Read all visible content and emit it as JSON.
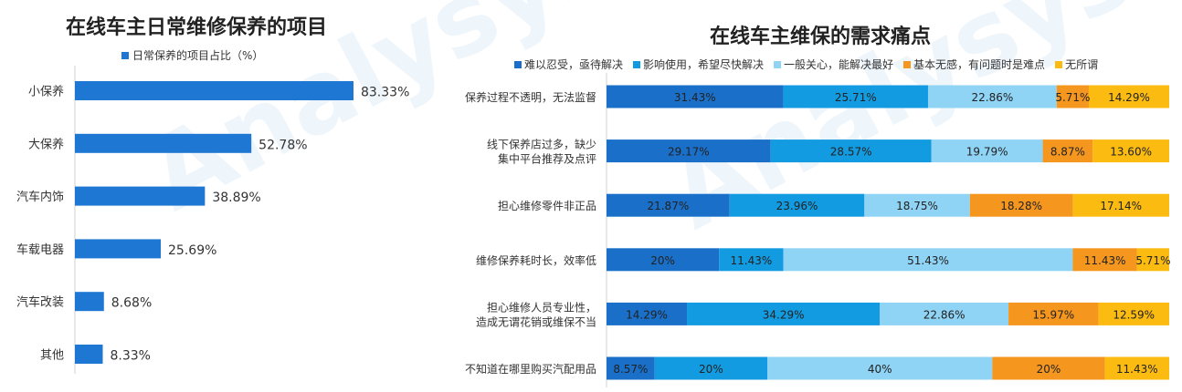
{
  "watermark": "Analysys 易观分析",
  "chart_data": [
    {
      "type": "bar",
      "orientation": "horizontal",
      "title": "在线车主日常维修保养的项目",
      "categories": [
        "小保养",
        "大保养",
        "汽车内饰",
        "车载电器",
        "汽车改装",
        "其他"
      ],
      "series": [
        {
          "name": "日常保养的项目占比（%）",
          "values": [
            83.33,
            52.78,
            38.89,
            25.69,
            8.68,
            8.33
          ],
          "color": "#1f77d4"
        }
      ],
      "value_labels": [
        "83.33%",
        "52.78%",
        "38.89%",
        "25.69%",
        "8.68%",
        "8.33%"
      ],
      "xlim": [
        0,
        100
      ],
      "grid": false,
      "legend_position": "top"
    },
    {
      "type": "bar",
      "orientation": "horizontal",
      "stacked": true,
      "title": "在线车主维保的需求痛点",
      "categories": [
        "保养过程不透明，无法监督",
        "线下保养店过多，缺少\n集中平台推荐及点评",
        "担心维修零件非正品",
        "维修保养耗时长，效率低",
        "担心维修人员专业性，\n造成无谓花销或维保不当",
        "不知道在哪里购买汽配用品"
      ],
      "series": [
        {
          "name": "难以忍受，亟待解决",
          "color": "#1a6fc9",
          "values": [
            31.43,
            29.17,
            21.87,
            20,
            14.29,
            8.57
          ],
          "labels": [
            "31.43%",
            "29.17%",
            "21.87%",
            "20%",
            "14.29%",
            "8.57%"
          ]
        },
        {
          "name": "影响使用，希望尽快解决",
          "color": "#129be0",
          "values": [
            25.71,
            28.57,
            23.96,
            11.43,
            34.29,
            20
          ],
          "labels": [
            "25.71%",
            "28.57%",
            "23.96%",
            "11.43%",
            "34.29%",
            "20%"
          ]
        },
        {
          "name": "一般关心，能解决最好",
          "color": "#8fd3f5",
          "values": [
            22.86,
            19.79,
            18.75,
            51.43,
            22.86,
            40
          ],
          "labels": [
            "22.86%",
            "19.79%",
            "18.75%",
            "51.43%",
            "22.86%",
            "40%"
          ]
        },
        {
          "name": "基本无感，有问题时是难点",
          "color": "#f5961e",
          "values": [
            5.71,
            8.87,
            18.28,
            11.43,
            15.97,
            20
          ],
          "labels": [
            "5.71%",
            "8.87%",
            "18.28%",
            "11.43%",
            "15.97%",
            "20%"
          ]
        },
        {
          "name": "无所谓",
          "color": "#fbbb10",
          "values": [
            14.29,
            13.6,
            17.14,
            5.71,
            12.59,
            11.43
          ],
          "labels": [
            "14.29%",
            "13.60%",
            "17.14%",
            "5.71%",
            "12.59%",
            "11.43%"
          ]
        }
      ],
      "xlim": [
        0,
        100
      ],
      "grid": false,
      "legend_position": "top"
    }
  ]
}
